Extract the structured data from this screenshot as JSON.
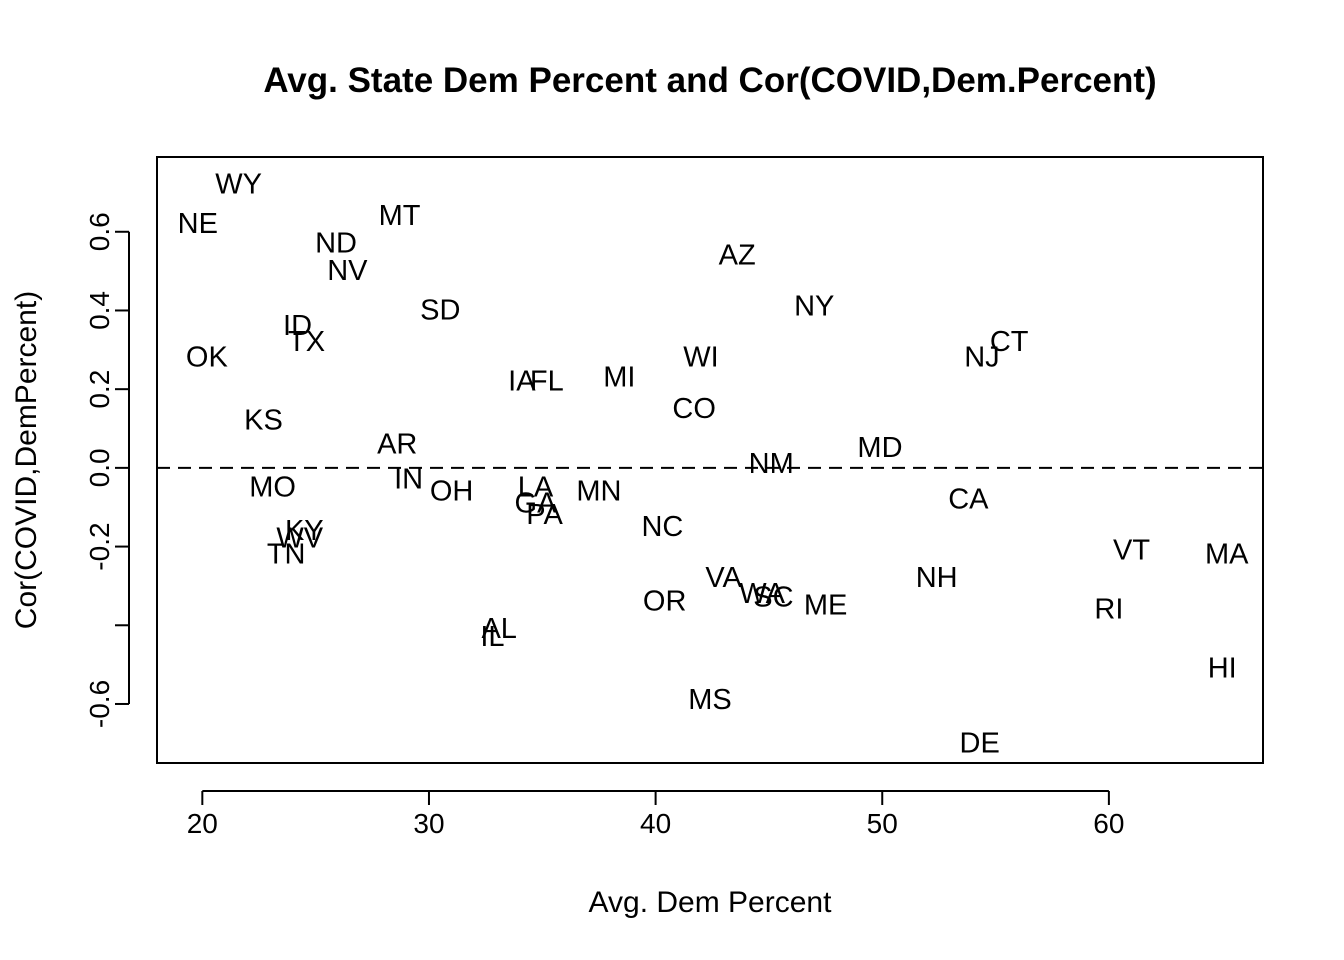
{
  "chart_data": {
    "type": "scatter",
    "title": "Avg. State Dem Percent and Cor(COVID,Dem.Percent)",
    "xlabel": "Avg. Dem Percent",
    "ylabel": "Cor(COVID,DemPercent)",
    "xlim": [
      18,
      66.8
    ],
    "ylim": [
      -0.75,
      0.79
    ],
    "x_ticks": [
      20,
      30,
      40,
      50,
      60
    ],
    "x_tick_labels": [
      "20",
      "30",
      "40",
      "50",
      "60"
    ],
    "y_ticks": [
      -0.6,
      -0.4,
      -0.2,
      0.0,
      0.2,
      0.4,
      0.6
    ],
    "y_tick_labels": [
      "-0.6",
      "",
      "-0.2",
      "0.0",
      "0.2",
      "0.4",
      "0.6"
    ],
    "grid": false,
    "reference_line": {
      "y": 0,
      "style": "dashed"
    },
    "points": [
      {
        "label": "WY",
        "x": 21.6,
        "y": 0.72
      },
      {
        "label": "NE",
        "x": 19.8,
        "y": 0.62
      },
      {
        "label": "ND",
        "x": 25.9,
        "y": 0.57
      },
      {
        "label": "MT",
        "x": 28.7,
        "y": 0.64
      },
      {
        "label": "NV",
        "x": 26.4,
        "y": 0.5
      },
      {
        "label": "SD",
        "x": 30.5,
        "y": 0.4
      },
      {
        "label": "ID",
        "x": 24.2,
        "y": 0.36
      },
      {
        "label": "TX",
        "x": 24.6,
        "y": 0.32
      },
      {
        "label": "OK",
        "x": 20.2,
        "y": 0.28
      },
      {
        "label": "KS",
        "x": 22.7,
        "y": 0.12
      },
      {
        "label": "AR",
        "x": 28.6,
        "y": 0.06
      },
      {
        "label": "IN",
        "x": 29.1,
        "y": -0.03
      },
      {
        "label": "OH",
        "x": 31.0,
        "y": -0.06
      },
      {
        "label": "MO",
        "x": 23.1,
        "y": -0.05
      },
      {
        "label": "KY",
        "x": 24.5,
        "y": -0.16
      },
      {
        "label": "WV",
        "x": 24.3,
        "y": -0.18
      },
      {
        "label": "TN",
        "x": 23.7,
        "y": -0.22
      },
      {
        "label": "IL",
        "x": 32.8,
        "y": -0.43
      },
      {
        "label": "AL",
        "x": 33.1,
        "y": -0.41
      },
      {
        "label": "LA",
        "x": 34.7,
        "y": -0.05
      },
      {
        "label": "GA",
        "x": 34.7,
        "y": -0.09
      },
      {
        "label": "PA",
        "x": 35.1,
        "y": -0.12
      },
      {
        "label": "IA",
        "x": 34.1,
        "y": 0.22
      },
      {
        "label": "FL",
        "x": 35.2,
        "y": 0.22
      },
      {
        "label": "MN",
        "x": 37.5,
        "y": -0.06
      },
      {
        "label": "MI",
        "x": 38.4,
        "y": 0.23
      },
      {
        "label": "NC",
        "x": 40.3,
        "y": -0.15
      },
      {
        "label": "OR",
        "x": 40.4,
        "y": -0.34
      },
      {
        "label": "WI",
        "x": 42.0,
        "y": 0.28
      },
      {
        "label": "CO",
        "x": 41.7,
        "y": 0.15
      },
      {
        "label": "MS",
        "x": 42.4,
        "y": -0.59
      },
      {
        "label": "AZ",
        "x": 43.6,
        "y": 0.54
      },
      {
        "label": "NY",
        "x": 47.0,
        "y": 0.41
      },
      {
        "label": "NM",
        "x": 45.1,
        "y": 0.01
      },
      {
        "label": "VA",
        "x": 43.0,
        "y": -0.28
      },
      {
        "label": "WA",
        "x": 44.7,
        "y": -0.32
      },
      {
        "label": "SC",
        "x": 45.2,
        "y": -0.33
      },
      {
        "label": "ME",
        "x": 47.5,
        "y": -0.35
      },
      {
        "label": "MD",
        "x": 49.9,
        "y": 0.05
      },
      {
        "label": "NH",
        "x": 52.4,
        "y": -0.28
      },
      {
        "label": "CA",
        "x": 53.8,
        "y": -0.08
      },
      {
        "label": "NJ",
        "x": 54.4,
        "y": 0.28
      },
      {
        "label": "CT",
        "x": 55.6,
        "y": 0.32
      },
      {
        "label": "DE",
        "x": 54.3,
        "y": -0.7
      },
      {
        "label": "VT",
        "x": 61.0,
        "y": -0.21
      },
      {
        "label": "RI",
        "x": 60.0,
        "y": -0.36
      },
      {
        "label": "MA",
        "x": 65.2,
        "y": -0.22
      },
      {
        "label": "HI",
        "x": 65.0,
        "y": -0.51
      }
    ]
  }
}
